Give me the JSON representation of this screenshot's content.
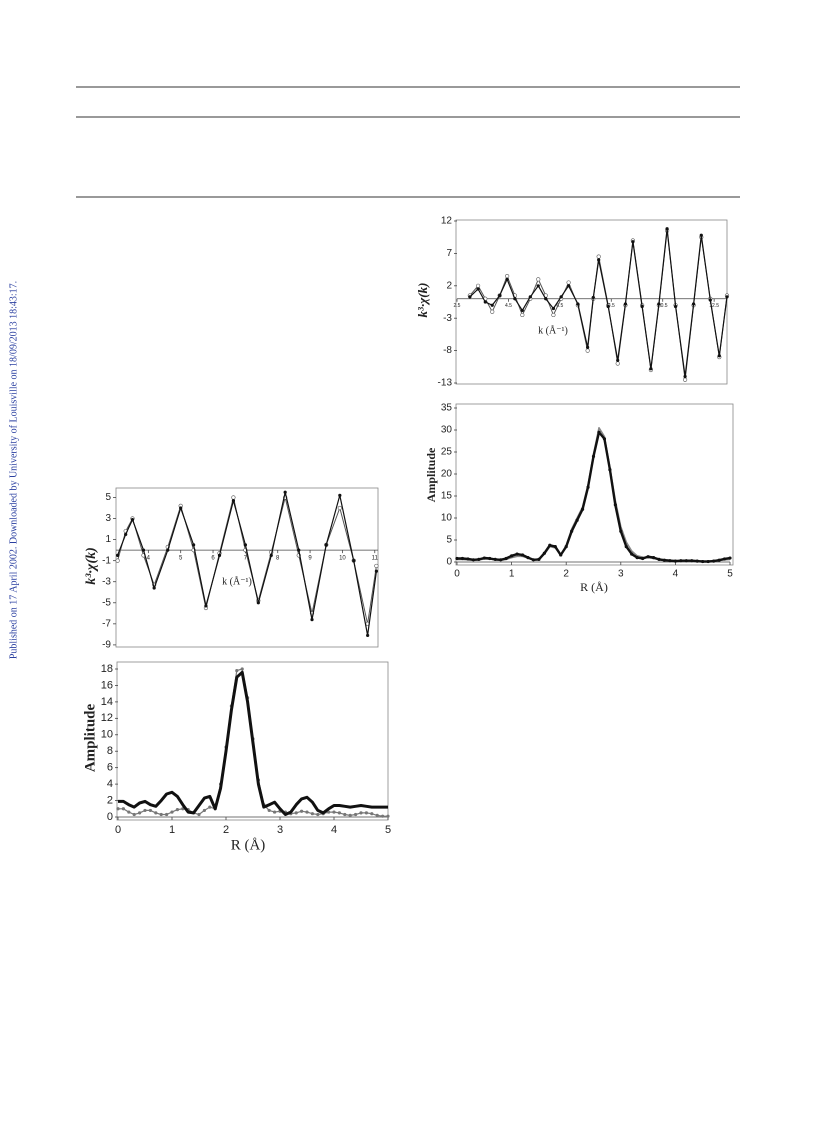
{
  "sidebar": {
    "text": "Published on 17 April 2002. Downloaded by University of Louisville on 18/09/2013 18:43:17."
  },
  "chart_data": [
    {
      "type": "line",
      "y_label": "k³·χ(k)",
      "x_label": "k (Å⁻¹)",
      "xlim": [
        2.5,
        13
      ],
      "xticks": [
        2.5,
        4.5,
        6.5,
        8.5,
        10.5,
        12.5
      ],
      "ylim": [
        -13,
        12
      ],
      "yticks": [
        12,
        7,
        2,
        -3,
        -8,
        -13
      ],
      "x": [
        3.0,
        3.32,
        3.6,
        3.87,
        4.16,
        4.45,
        4.75,
        5.04,
        5.35,
        5.66,
        5.95,
        6.25,
        6.55,
        6.84,
        7.2,
        7.58,
        7.8,
        8.01,
        8.38,
        8.75,
        9.05,
        9.34,
        9.7,
        10.04,
        10.35,
        10.67,
        11.0,
        11.37,
        11.7,
        12.0,
        12.35,
        12.7,
        13.0
      ],
      "series": [
        {
          "color": "#555555",
          "marker": "circle",
          "values": [
            0.5,
            2,
            0,
            -2,
            0.5,
            3.5,
            0.5,
            -2.5,
            0,
            3,
            0.5,
            -2.5,
            0,
            2.5,
            -1,
            -8,
            0,
            6.5,
            -1,
            -10,
            -1,
            9,
            -1,
            -11,
            -1,
            10.5,
            -1,
            -12.5,
            -1,
            9.5,
            0,
            -9,
            0.5
          ]
        },
        {
          "color": "#111111",
          "marker": "dot",
          "values": [
            0.3,
            1.5,
            -0.5,
            -1,
            0.5,
            3,
            0,
            -1.8,
            0.3,
            2,
            0,
            -1.5,
            0.3,
            2,
            -0.8,
            -7.5,
            0.2,
            6,
            -1.2,
            -9.5,
            -0.8,
            8.8,
            -1.2,
            -10.8,
            -0.8,
            10.8,
            -1.2,
            -12,
            -0.8,
            9.8,
            -0.2,
            -8.8,
            0.3
          ]
        }
      ]
    },
    {
      "type": "line",
      "y_label": "Amplitude",
      "x_label": "R (Å)",
      "xlim": [
        0,
        5
      ],
      "xticks": [
        0,
        1,
        2,
        3,
        4,
        5
      ],
      "ylim": [
        0,
        35
      ],
      "yticks": [
        0,
        5,
        10,
        15,
        20,
        25,
        30,
        35
      ],
      "x": [
        0,
        0.1,
        0.2,
        0.3,
        0.4,
        0.5,
        0.6,
        0.7,
        0.8,
        0.9,
        1.0,
        1.1,
        1.2,
        1.3,
        1.4,
        1.5,
        1.6,
        1.7,
        1.8,
        1.9,
        2.0,
        2.1,
        2.2,
        2.3,
        2.4,
        2.5,
        2.6,
        2.7,
        2.8,
        2.9,
        3.0,
        3.1,
        3.2,
        3.3,
        3.4,
        3.5,
        3.6,
        3.7,
        3.8,
        3.9,
        4.0,
        4.1,
        4.2,
        4.3,
        4.4,
        4.5,
        4.6,
        4.7,
        4.8,
        4.9,
        5.0
      ],
      "series": [
        {
          "color": "#888888",
          "marker": "none",
          "values": [
            0.6,
            0.6,
            0.5,
            0.4,
            0.5,
            0.7,
            0.7,
            0.5,
            0.4,
            0.6,
            1.0,
            1.3,
            1.3,
            0.9,
            0.5,
            0.6,
            1.8,
            3.5,
            3.2,
            1.5,
            3.8,
            7.5,
            10,
            12.5,
            17.5,
            24.5,
            30.5,
            28.5,
            21.5,
            14,
            8,
            4.5,
            2.5,
            1.4,
            1.1,
            1.0,
            0.8,
            0.6,
            0.5,
            0.4,
            0.3,
            0.2,
            0.2,
            0.2,
            0.2,
            0.2,
            0.2,
            0.3,
            0.4,
            0.5,
            0.6
          ]
        },
        {
          "color": "#111111",
          "marker": "dot",
          "values": [
            0.8,
            0.8,
            0.7,
            0.5,
            0.6,
            0.9,
            0.8,
            0.6,
            0.5,
            0.8,
            1.4,
            1.8,
            1.6,
            1.0,
            0.5,
            0.6,
            2.0,
            3.8,
            3.5,
            1.6,
            3.5,
            7,
            9.5,
            12,
            17,
            24,
            29.5,
            28,
            21,
            13,
            7,
            3.5,
            1.8,
            1.0,
            0.8,
            1.2,
            1.0,
            0.6,
            0.4,
            0.3,
            0.2,
            0.3,
            0.3,
            0.3,
            0.2,
            0.1,
            0.1,
            0.2,
            0.4,
            0.7,
            0.9
          ]
        }
      ]
    },
    {
      "type": "line",
      "y_label": "k³·χ(k)",
      "x_label": "k (Å⁻¹)",
      "xlim": [
        3,
        11.1
      ],
      "xticks": [
        4,
        5,
        6,
        7,
        8,
        9,
        10,
        11
      ],
      "ylim": [
        -9.2,
        5.9
      ],
      "yticks": [
        5,
        3,
        1,
        -1,
        -3,
        -5,
        -7,
        -9
      ],
      "x": [
        3.05,
        3.3,
        3.51,
        3.85,
        4.18,
        4.6,
        5.0,
        5.4,
        5.78,
        6.2,
        6.63,
        7.0,
        7.4,
        7.8,
        8.23,
        8.65,
        9.06,
        9.5,
        9.92,
        10.35,
        10.78,
        11.05
      ],
      "series": [
        {
          "color": "#555555",
          "marker": "circle",
          "values": [
            -1,
            1.8,
            3,
            -0.5,
            -3.3,
            0.3,
            4.2,
            0,
            -5.5,
            -0.3,
            5,
            0,
            -4.8,
            -0.2,
            5,
            -0.5,
            -6,
            0.5,
            4,
            -1,
            -7,
            -1.5
          ]
        },
        {
          "color": "#111111",
          "marker": "dot",
          "values": [
            -0.5,
            1.5,
            2.9,
            0,
            -3.6,
            0,
            4,
            0.5,
            -5.3,
            -0.5,
            4.7,
            0.5,
            -5,
            -0.5,
            5.5,
            0,
            -6.6,
            0.5,
            5.2,
            -1,
            -8.1,
            -2
          ]
        }
      ]
    },
    {
      "type": "line",
      "y_label": "Amplitude",
      "x_label": "R (Å)",
      "xlim": [
        0,
        5
      ],
      "xticks": [
        0,
        1,
        2,
        3,
        4,
        5
      ],
      "ylim": [
        0,
        18
      ],
      "yticks": [
        0,
        2,
        4,
        6,
        8,
        10,
        12,
        14,
        16,
        18
      ],
      "x": [
        0,
        0.1,
        0.2,
        0.3,
        0.4,
        0.5,
        0.6,
        0.7,
        0.8,
        0.9,
        1.0,
        1.1,
        1.2,
        1.3,
        1.4,
        1.5,
        1.6,
        1.7,
        1.8,
        1.9,
        2.0,
        2.1,
        2.2,
        2.3,
        2.4,
        2.5,
        2.6,
        2.7,
        2.8,
        2.9,
        3.0,
        3.1,
        3.2,
        3.3,
        3.4,
        3.5,
        3.6,
        3.7,
        3.8,
        3.9,
        4.0,
        4.1,
        4.2,
        4.3,
        4.4,
        4.5,
        4.6,
        4.7,
        4.8,
        4.9,
        5.0
      ],
      "series": [
        {
          "color": "#777777",
          "marker": "dot",
          "values": [
            1.0,
            1.0,
            0.6,
            0.3,
            0.5,
            0.8,
            0.8,
            0.5,
            0.3,
            0.3,
            0.6,
            0.9,
            1.0,
            0.9,
            0.5,
            0.3,
            0.8,
            1.2,
            1.0,
            4,
            8.5,
            13.5,
            17.8,
            18,
            14.5,
            9.5,
            4.5,
            1.5,
            0.8,
            0.6,
            0.7,
            0.6,
            0.4,
            0.5,
            0.7,
            0.6,
            0.4,
            0.3,
            0.4,
            0.6,
            0.6,
            0.5,
            0.3,
            0.2,
            0.3,
            0.5,
            0.5,
            0.4,
            0.2,
            0.1,
            0.1
          ]
        },
        {
          "color": "#111111",
          "marker": "none",
          "values": [
            1.9,
            1.9,
            1.5,
            1.2,
            1.7,
            1.9,
            1.5,
            1.3,
            2.0,
            2.8,
            3.0,
            2.5,
            1.5,
            0.6,
            0.5,
            1.4,
            2.3,
            2.5,
            1.0,
            3.5,
            8,
            13,
            17,
            17.6,
            14,
            9,
            4,
            1.2,
            1.5,
            1.8,
            1.0,
            0.3,
            0.6,
            1.5,
            2.2,
            2.4,
            1.8,
            0.8,
            0.5,
            1.0,
            1.4,
            1.4,
            1.3,
            1.2,
            1.3,
            1.4,
            1.3,
            1.2,
            1.2,
            1.2,
            1.2
          ]
        }
      ]
    }
  ]
}
